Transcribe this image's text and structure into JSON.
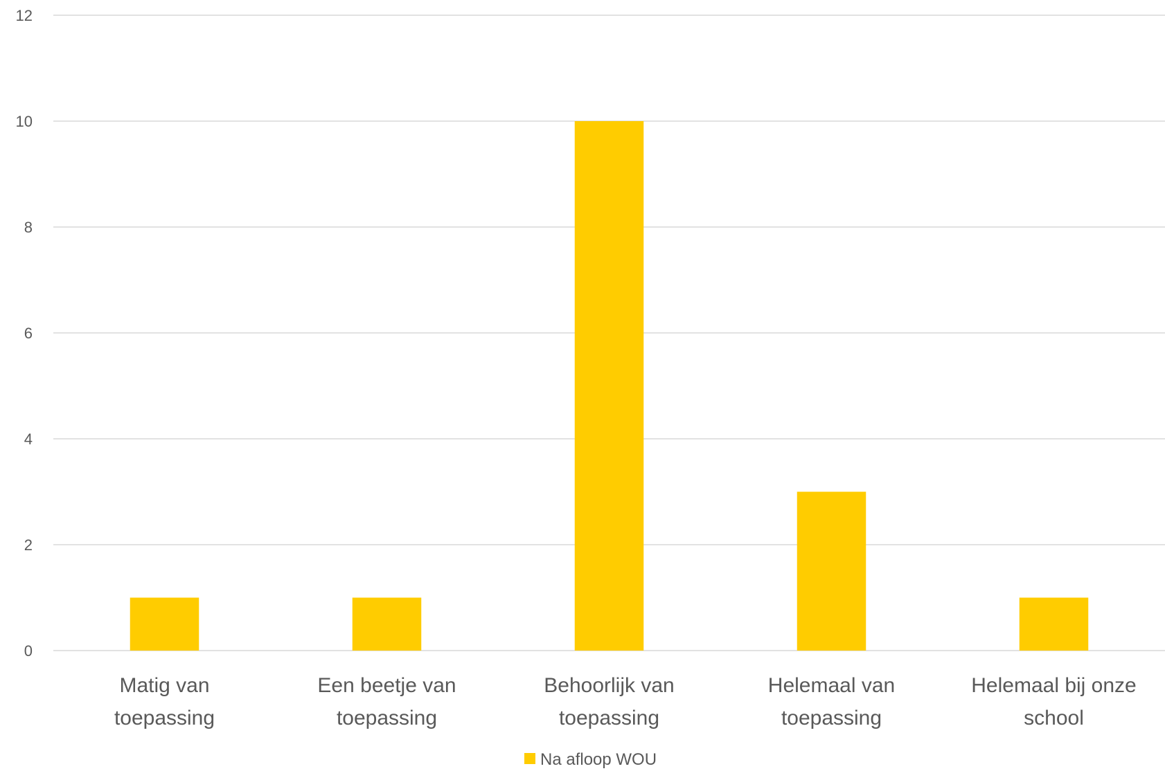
{
  "chart_data": {
    "type": "bar",
    "categories": [
      [
        "Matig van",
        "toepassing"
      ],
      [
        "Een beetje van",
        "toepassing"
      ],
      [
        "Behoorlijk van",
        "toepassing"
      ],
      [
        "Helemaal van",
        "toepassing"
      ],
      [
        "Helemaal bij onze",
        "school"
      ]
    ],
    "series": [
      {
        "name": "Na afloop WOU",
        "values": [
          1,
          1,
          10,
          3,
          1
        ],
        "color": "#ffcc00"
      }
    ],
    "ylim": [
      0,
      12
    ],
    "yticks": [
      0,
      2,
      4,
      6,
      8,
      10,
      12
    ],
    "grid": true,
    "legend_position": "bottom"
  }
}
